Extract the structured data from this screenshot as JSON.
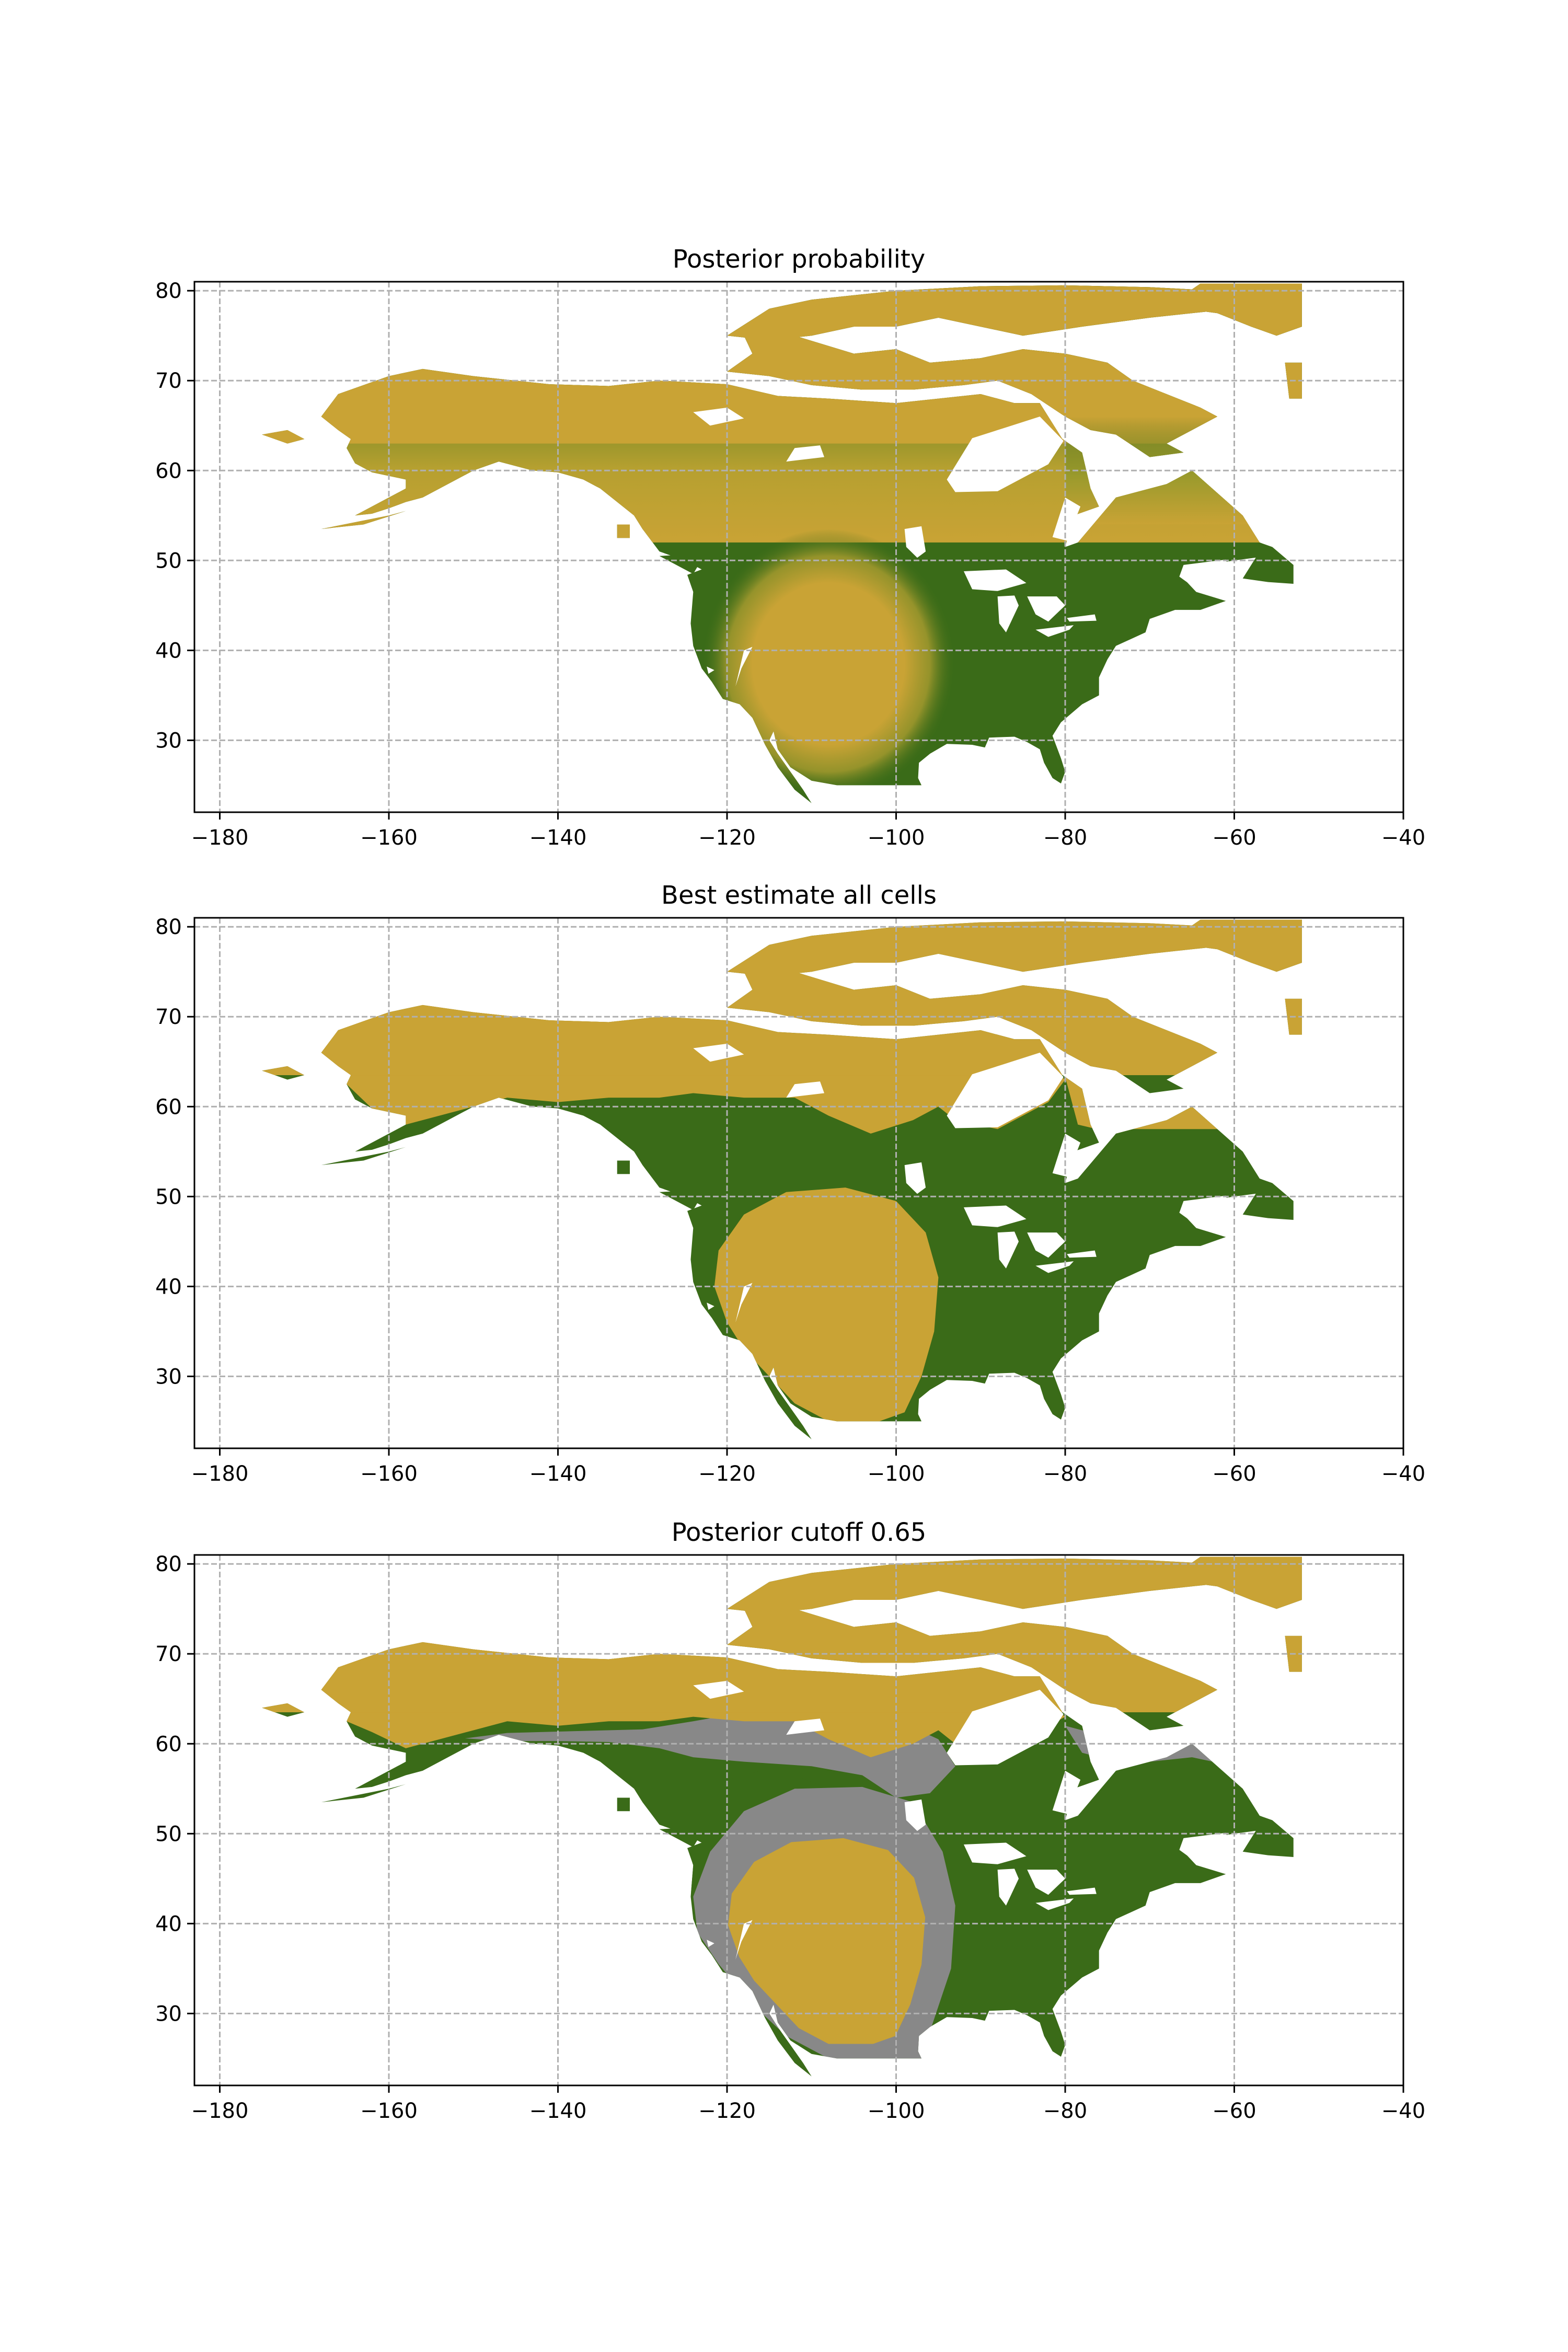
{
  "chart_data": [
    {
      "type": "heatmap",
      "title": "Posterior probability",
      "xlim": [
        -183,
        -40
      ],
      "ylim": [
        22,
        81
      ],
      "xticks": [
        -180,
        -160,
        -140,
        -120,
        -100,
        -80,
        -60,
        -40
      ],
      "yticks": [
        30,
        40,
        50,
        60,
        70,
        80
      ],
      "xtick_labels": [
        "−180",
        "−160",
        "−140",
        "−120",
        "−100",
        "−80",
        "−60",
        "−40"
      ],
      "ytick_labels": [
        "30",
        "40",
        "50",
        "60",
        "70",
        "80"
      ],
      "grid": true,
      "rendering": "continuous",
      "colormap": [
        "#c9a335",
        "#3a6b18"
      ],
      "categories": [
        "gold",
        "green"
      ]
    },
    {
      "type": "heatmap",
      "title": "Best estimate all cells",
      "xlim": [
        -183,
        -40
      ],
      "ylim": [
        22,
        81
      ],
      "xticks": [
        -180,
        -160,
        -140,
        -120,
        -100,
        -80,
        -60,
        -40
      ],
      "yticks": [
        30,
        40,
        50,
        60,
        70,
        80
      ],
      "xtick_labels": [
        "−180",
        "−160",
        "−140",
        "−120",
        "−100",
        "−80",
        "−60",
        "−40"
      ],
      "ytick_labels": [
        "30",
        "40",
        "50",
        "60",
        "70",
        "80"
      ],
      "grid": true,
      "rendering": "binary",
      "colormap": [
        "#c9a335",
        "#3a6b18"
      ],
      "categories": [
        "gold",
        "green"
      ]
    },
    {
      "type": "heatmap",
      "title": "Posterior cutoff 0.65",
      "xlim": [
        -183,
        -40
      ],
      "ylim": [
        22,
        81
      ],
      "xticks": [
        -180,
        -160,
        -140,
        -120,
        -100,
        -80,
        -60,
        -40
      ],
      "yticks": [
        30,
        40,
        50,
        60,
        70,
        80
      ],
      "xtick_labels": [
        "−180",
        "−160",
        "−140",
        "−120",
        "−100",
        "−80",
        "−60",
        "−40"
      ],
      "ytick_labels": [
        "30",
        "40",
        "50",
        "60",
        "70",
        "80"
      ],
      "grid": true,
      "rendering": "cutoff",
      "cutoff": 0.65,
      "colormap": [
        "#c9a335",
        "#3a6b18",
        "#888888"
      ],
      "categories": [
        "gold",
        "green",
        "uncertain"
      ]
    }
  ],
  "colors": {
    "gold": "#c9a335",
    "green": "#3a6b18",
    "uncertain": "#888888",
    "grid": "#b0b0b0"
  }
}
